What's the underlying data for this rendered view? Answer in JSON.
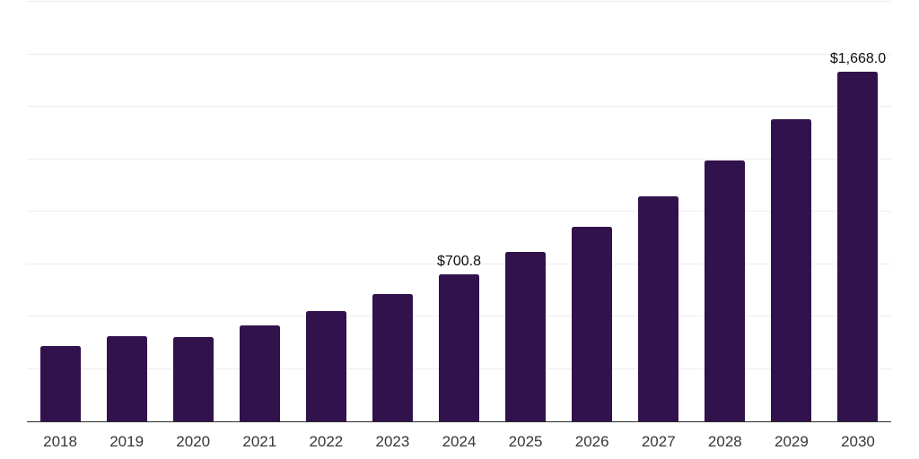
{
  "chart": {
    "background_color": "#ffffff",
    "bar_color": "#32124d",
    "gridline_color": "#ededed",
    "axis_line_color": "#2b2b2b",
    "tick_label_color": "#373737",
    "value_label_color": "#0d0d0d"
  },
  "chart_data": {
    "type": "bar",
    "categories": [
      "2018",
      "2019",
      "2020",
      "2021",
      "2022",
      "2023",
      "2024",
      "2025",
      "2026",
      "2027",
      "2028",
      "2029",
      "2030"
    ],
    "values": [
      361,
      405,
      401,
      459,
      527,
      609,
      700.8,
      807,
      928,
      1074,
      1244,
      1441,
      1668
    ],
    "data_labels": [
      "",
      "",
      "",
      "",
      "",
      "",
      "$700.8",
      "",
      "",
      "",
      "",
      "",
      "$1,668.0"
    ],
    "ylim": [
      0,
      2000
    ],
    "gridline_step": 250,
    "grid": true,
    "legend": false,
    "y_axis_labels_visible": false
  }
}
